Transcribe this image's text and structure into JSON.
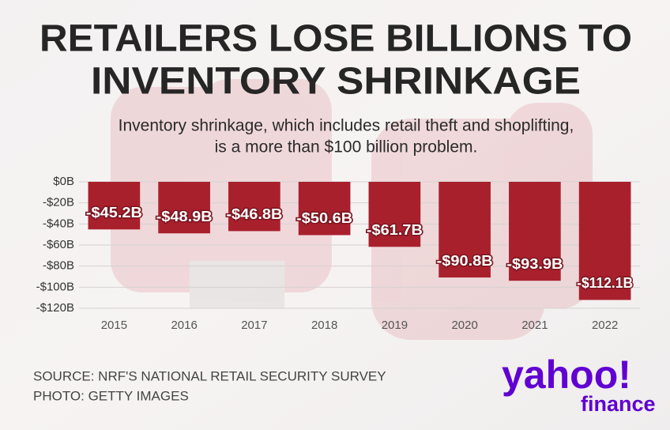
{
  "chart_data": {
    "type": "bar",
    "title": [
      "RETAILERS LOSE BILLIONS TO",
      "INVENTORY SHRINKAGE"
    ],
    "subtitle": [
      "Inventory shrinkage, which includes retail theft and shoplifting,",
      "is a more than $100 billion problem."
    ],
    "categories": [
      "2015",
      "2016",
      "2017",
      "2018",
      "2019",
      "2020",
      "2021",
      "2022"
    ],
    "values": [
      -45.2,
      -48.9,
      -46.8,
      -50.6,
      -61.7,
      -90.8,
      -93.9,
      -112.1
    ],
    "value_labels": [
      "-$45.2B",
      "-$48.9B",
      "-$46.8B",
      "-$50.6B",
      "-$61.7B",
      "-$90.8B",
      "-$93.9B",
      "-$112.1B"
    ],
    "color": "#a9202d",
    "ylim": [
      -120,
      0
    ],
    "yticks": [
      {
        "value": 0,
        "label": "$0B"
      },
      {
        "value": -20,
        "label": "-$20B"
      },
      {
        "value": -40,
        "label": "-$40B"
      },
      {
        "value": -60,
        "label": "-$60B"
      },
      {
        "value": -80,
        "label": "-$80B"
      },
      {
        "value": -100,
        "label": "-$100B"
      },
      {
        "value": -120,
        "label": "-$120B"
      }
    ],
    "grid": true
  },
  "footer": {
    "source": "SOURCE: NRF'S NATIONAL RETAIL SECURITY SURVEY",
    "photo": "PHOTO: GETTY IMAGES",
    "logo": "yahoo!",
    "logo_sub": "finance"
  }
}
